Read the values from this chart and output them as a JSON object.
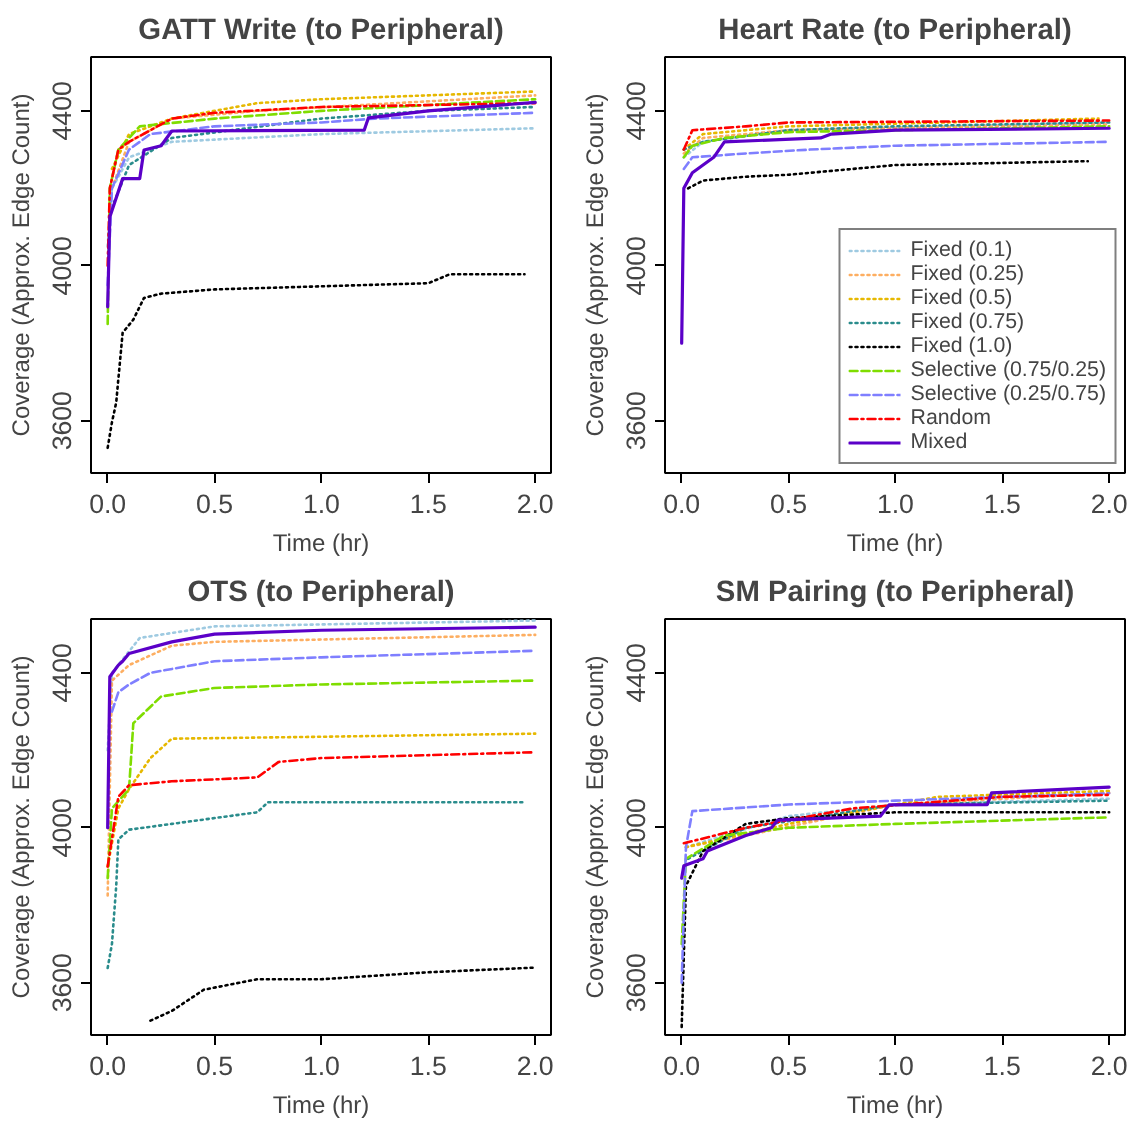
{
  "chart_data": [
    {
      "type": "line",
      "title": "GATT Write (to Peripheral)",
      "xlabel": "Time (hr)",
      "ylabel": "Coverage (Approx. Edge Count)",
      "xlim": [
        -0.078,
        2.074
      ],
      "ylim": [
        3465,
        4539
      ],
      "xticks": [
        {
          "value": 0,
          "label": "0.0"
        },
        {
          "value": 0.5,
          "label": "0.5"
        },
        {
          "value": 1,
          "label": "1.0"
        },
        {
          "value": 1.5,
          "label": "1.5"
        },
        {
          "value": 2,
          "label": "2.0"
        }
      ],
      "yticks": [
        3600,
        4000,
        4400
      ],
      "grid": false,
      "legend": false,
      "series": [
        {
          "color": "#9ecae1",
          "line_style": "dotted",
          "x": [
            0,
            0.02,
            0.1,
            0.3,
            1.0,
            2.0
          ],
          "values": [
            4050,
            4200,
            4280,
            4320,
            4340,
            4355
          ]
        },
        {
          "color": "#fdae61",
          "line_style": "dotted",
          "x": [
            0.02,
            0.1,
            0.3,
            0.7,
            2.0
          ],
          "values": [
            4200,
            4320,
            4380,
            4400,
            4440
          ]
        },
        {
          "color": "#e6b800",
          "line_style": "dotted",
          "x": [
            0.02,
            0.1,
            0.3,
            0.7,
            1.0,
            2.0
          ],
          "values": [
            4250,
            4340,
            4380,
            4420,
            4430,
            4450
          ]
        },
        {
          "color": "#2a8c8c",
          "line_style": "dotted",
          "x": [
            0.02,
            0.1,
            0.3,
            1.0,
            1.5,
            2.0
          ],
          "values": [
            4150,
            4260,
            4330,
            4380,
            4400,
            4410
          ]
        },
        {
          "color": "#000000",
          "line_style": "dotted",
          "x": [
            0,
            0.02,
            0.04,
            0.05,
            0.07,
            0.12,
            0.17,
            0.25,
            0.5,
            1.5,
            1.6,
            1.95
          ],
          "values": [
            3530,
            3596,
            3647,
            3708,
            3827,
            3861,
            3917,
            3928,
            3939,
            3955,
            3978,
            3978
          ]
        },
        {
          "color": "#7fdd00",
          "line_style": "dashed",
          "x": [
            0,
            0.01,
            0.05,
            0.15,
            0.5,
            1.0,
            2.0
          ],
          "values": [
            3850,
            4200,
            4300,
            4360,
            4380,
            4400,
            4430
          ]
        },
        {
          "color": "#7f7fff",
          "line_style": "dashed",
          "x": [
            0,
            0.02,
            0.1,
            0.2,
            0.5,
            1.0,
            1.25,
            2.0
          ],
          "values": [
            3950,
            4200,
            4300,
            4340,
            4360,
            4370,
            4380,
            4395
          ]
        },
        {
          "color": "#ff0000",
          "line_style": "dashdot",
          "x": [
            0,
            0.01,
            0.05,
            0.1,
            0.3,
            0.5,
            1.0,
            2.0
          ],
          "values": [
            4000,
            4200,
            4300,
            4320,
            4380,
            4395,
            4410,
            4420
          ]
        },
        {
          "color": "#5b00c8",
          "line_style": "solid",
          "x": [
            0,
            0.01,
            0.07,
            0.15,
            0.17,
            0.25,
            0.3,
            1.2,
            1.22,
            1.5,
            2.0
          ],
          "values": [
            3894,
            4126,
            4225,
            4225,
            4299,
            4310,
            4348,
            4350,
            4382,
            4400,
            4422
          ]
        }
      ]
    },
    {
      "type": "line",
      "title": "Heart Rate (to Peripheral)",
      "xlabel": "Time (hr)",
      "ylabel": "Coverage (Approx. Edge Count)",
      "xlim": [
        -0.078,
        2.074
      ],
      "ylim": [
        3465,
        4539
      ],
      "xticks": [
        {
          "value": 0,
          "label": "0.0"
        },
        {
          "value": 0.5,
          "label": "0.5"
        },
        {
          "value": 1,
          "label": "1.0"
        },
        {
          "value": 1.5,
          "label": "1.5"
        },
        {
          "value": 2,
          "label": "2.0"
        }
      ],
      "yticks": [
        3600,
        4000,
        4400
      ],
      "grid": false,
      "legend": "bottom right",
      "series": [
        {
          "name": "Fixed (0.1)",
          "color": "#9ecae1",
          "line_style": "dotted",
          "x": [
            0.01,
            0.1,
            0.5,
            2.0
          ],
          "values": [
            4280,
            4320,
            4350,
            4370
          ]
        },
        {
          "name": "Fixed (0.25)",
          "color": "#fdae61",
          "line_style": "dotted",
          "x": [
            0.01,
            0.1,
            0.5,
            2.0
          ],
          "values": [
            4290,
            4330,
            4350,
            4365
          ]
        },
        {
          "name": "Fixed (0.5)",
          "color": "#e6b800",
          "line_style": "dotted",
          "x": [
            0.01,
            0.1,
            0.5,
            1.95
          ],
          "values": [
            4300,
            4340,
            4360,
            4380
          ]
        },
        {
          "name": "Fixed (0.75)",
          "color": "#2a8c8c",
          "line_style": "dotted",
          "x": [
            0.01,
            0.1,
            0.5,
            1.0,
            2.0
          ],
          "values": [
            4300,
            4320,
            4350,
            4360,
            4370
          ]
        },
        {
          "name": "Fixed (1.0)",
          "color": "#000000",
          "line_style": "dotted",
          "x": [
            0.03,
            0.1,
            0.3,
            0.5,
            1.0,
            1.9
          ],
          "values": [
            4200,
            4220,
            4230,
            4235,
            4260,
            4270
          ]
        },
        {
          "name": "Selective (0.75/0.25)",
          "color": "#7fdd00",
          "line_style": "dashed",
          "x": [
            0.01,
            0.05,
            0.2,
            0.5,
            2.0
          ],
          "values": [
            4280,
            4310,
            4330,
            4345,
            4360
          ]
        },
        {
          "name": "Selective (0.25/0.75)",
          "color": "#7f7fff",
          "line_style": "dashed",
          "x": [
            0.01,
            0.05,
            0.3,
            0.6,
            1.0,
            2.0
          ],
          "values": [
            4250,
            4280,
            4290,
            4300,
            4310,
            4320
          ]
        },
        {
          "name": "Random",
          "color": "#ff0000",
          "line_style": "dashdot",
          "x": [
            0.01,
            0.05,
            0.3,
            0.5,
            2.0
          ],
          "values": [
            4300,
            4350,
            4360,
            4370,
            4375
          ]
        },
        {
          "name": "Mixed",
          "color": "#5b00c8",
          "line_style": "solid",
          "x": [
            0,
            0.01,
            0.05,
            0.1,
            0.15,
            0.2,
            0.65,
            0.7,
            1.0,
            2.0
          ],
          "values": [
            3800,
            4200,
            4240,
            4260,
            4280,
            4320,
            4330,
            4340,
            4350,
            4355
          ]
        }
      ]
    },
    {
      "type": "line",
      "title": "OTS (to Peripheral)",
      "xlabel": "Time (hr)",
      "ylabel": "Coverage (Approx. Edge Count)",
      "xlim": [
        -0.078,
        2.074
      ],
      "ylim": [
        3465,
        4539
      ],
      "xticks": [
        {
          "value": 0,
          "label": "0.0"
        },
        {
          "value": 0.5,
          "label": "0.5"
        },
        {
          "value": 1,
          "label": "1.0"
        },
        {
          "value": 1.5,
          "label": "1.5"
        },
        {
          "value": 2,
          "label": "2.0"
        }
      ],
      "yticks": [
        3600,
        4000,
        4400
      ],
      "grid": false,
      "legend": false,
      "series": [
        {
          "color": "#9ecae1",
          "line_style": "dotted",
          "x": [
            0,
            0.02,
            0.15,
            0.5,
            2.0
          ],
          "values": [
            4200,
            4400,
            4490,
            4520,
            4535
          ]
        },
        {
          "color": "#fdae61",
          "line_style": "dotted",
          "x": [
            0,
            0.02,
            0.1,
            0.3,
            0.5,
            2.0
          ],
          "values": [
            3825,
            4380,
            4420,
            4470,
            4480,
            4498
          ]
        },
        {
          "color": "#e6b800",
          "line_style": "dotted",
          "x": [
            0,
            0.05,
            0.1,
            0.2,
            0.3,
            1.0,
            2.0
          ],
          "values": [
            3900,
            4050,
            4100,
            4180,
            4230,
            4235,
            4243
          ]
        },
        {
          "color": "#2a8c8c",
          "line_style": "dotted",
          "x": [
            0,
            0.02,
            0.04,
            0.05,
            0.1,
            0.3,
            0.7,
            0.75,
            1.95
          ],
          "values": [
            3638,
            3700,
            3850,
            3970,
            3995,
            4010,
            4040,
            4066,
            4066
          ]
        },
        {
          "color": "#000000",
          "line_style": "dotted",
          "x": [
            0.2,
            0.3,
            0.45,
            0.7,
            1.0,
            1.5,
            2.0
          ],
          "values": [
            3502,
            3527,
            3582,
            3609,
            3609,
            3627,
            3639
          ]
        },
        {
          "color": "#7fdd00",
          "line_style": "dashed",
          "x": [
            0,
            0.02,
            0.1,
            0.12,
            0.25,
            0.5,
            1.0,
            2.0
          ],
          "values": [
            3870,
            4050,
            4100,
            4270,
            4339,
            4361,
            4370,
            4380
          ]
        },
        {
          "color": "#7f7fff",
          "line_style": "dashed",
          "x": [
            0.02,
            0.05,
            0.1,
            0.2,
            0.5,
            1.0,
            2.0
          ],
          "values": [
            4300,
            4350,
            4370,
            4400,
            4430,
            4440,
            4457
          ]
        },
        {
          "color": "#ff0000",
          "line_style": "dashdot",
          "x": [
            0,
            0.05,
            0.1,
            0.3,
            0.7,
            0.8,
            1.0,
            2.0
          ],
          "values": [
            3900,
            4080,
            4110,
            4120,
            4130,
            4170,
            4180,
            4195
          ]
        },
        {
          "color": "#5b00c8",
          "line_style": "solid",
          "x": [
            0,
            0.01,
            0.05,
            0.07,
            0.1,
            0.3,
            0.5,
            1.0,
            2.0
          ],
          "values": [
            4000,
            4390,
            4420,
            4430,
            4450,
            4480,
            4500,
            4510,
            4518
          ]
        }
      ]
    },
    {
      "type": "line",
      "title": "SM Pairing (to Peripheral)",
      "xlabel": "Time (hr)",
      "ylabel": "Coverage (Approx. Edge Count)",
      "xlim": [
        -0.078,
        2.074
      ],
      "ylim": [
        3465,
        4539
      ],
      "xticks": [
        {
          "value": 0,
          "label": "0.0"
        },
        {
          "value": 0.5,
          "label": "0.5"
        },
        {
          "value": 1,
          "label": "1.0"
        },
        {
          "value": 1.5,
          "label": "1.5"
        },
        {
          "value": 2,
          "label": "2.0"
        }
      ],
      "yticks": [
        3600,
        4000,
        4400
      ],
      "grid": false,
      "legend": false,
      "series": [
        {
          "color": "#9ecae1",
          "line_style": "dotted",
          "x": [
            0.02,
            0.5,
            1.0,
            2.0
          ],
          "values": [
            3950,
            4030,
            4060,
            4075
          ]
        },
        {
          "color": "#fdae61",
          "line_style": "dotted",
          "x": [
            0.02,
            0.3,
            1.0,
            2.0
          ],
          "values": [
            3950,
            3980,
            4060,
            4090
          ]
        },
        {
          "color": "#e6b800",
          "line_style": "dotted",
          "x": [
            0.02,
            0.5,
            1.2,
            2.0
          ],
          "values": [
            3950,
            4010,
            4080,
            4095
          ]
        },
        {
          "color": "#2a8c8c",
          "line_style": "dotted",
          "x": [
            0.03,
            0.3,
            1.0,
            2.0
          ],
          "values": [
            3920,
            4000,
            4060,
            4070
          ]
        },
        {
          "color": "#000000",
          "line_style": "dotted",
          "x": [
            0,
            0.02,
            0.1,
            0.3,
            0.5,
            1.0,
            2.0
          ],
          "values": [
            3486,
            3850,
            3940,
            4010,
            4025,
            4040,
            4040
          ]
        },
        {
          "color": "#7fdd00",
          "line_style": "dashed",
          "x": [
            0,
            0.02,
            0.2,
            0.5,
            1.0,
            2.0
          ],
          "values": [
            3700,
            3920,
            3980,
            4000,
            4010,
            4027
          ]
        },
        {
          "color": "#7f7fff",
          "line_style": "dashed",
          "x": [
            0,
            0.02,
            0.05,
            0.5,
            1.0,
            2.0
          ],
          "values": [
            3600,
            3950,
            4043,
            4060,
            4070,
            4089
          ]
        },
        {
          "color": "#ff0000",
          "line_style": "dashdot",
          "x": [
            0.01,
            0.3,
            0.8,
            1.5,
            2.0
          ],
          "values": [
            3960,
            4000,
            4050,
            4080,
            4085
          ]
        },
        {
          "color": "#5b00c8",
          "line_style": "solid",
          "x": [
            0,
            0.01,
            0.1,
            0.12,
            0.3,
            0.42,
            0.45,
            0.93,
            0.97,
            1.43,
            1.45,
            2.0
          ],
          "values": [
            3870,
            3902,
            3920,
            3940,
            3980,
            4000,
            4020,
            4030,
            4059,
            4060,
            4090,
            4105
          ]
        }
      ]
    }
  ]
}
